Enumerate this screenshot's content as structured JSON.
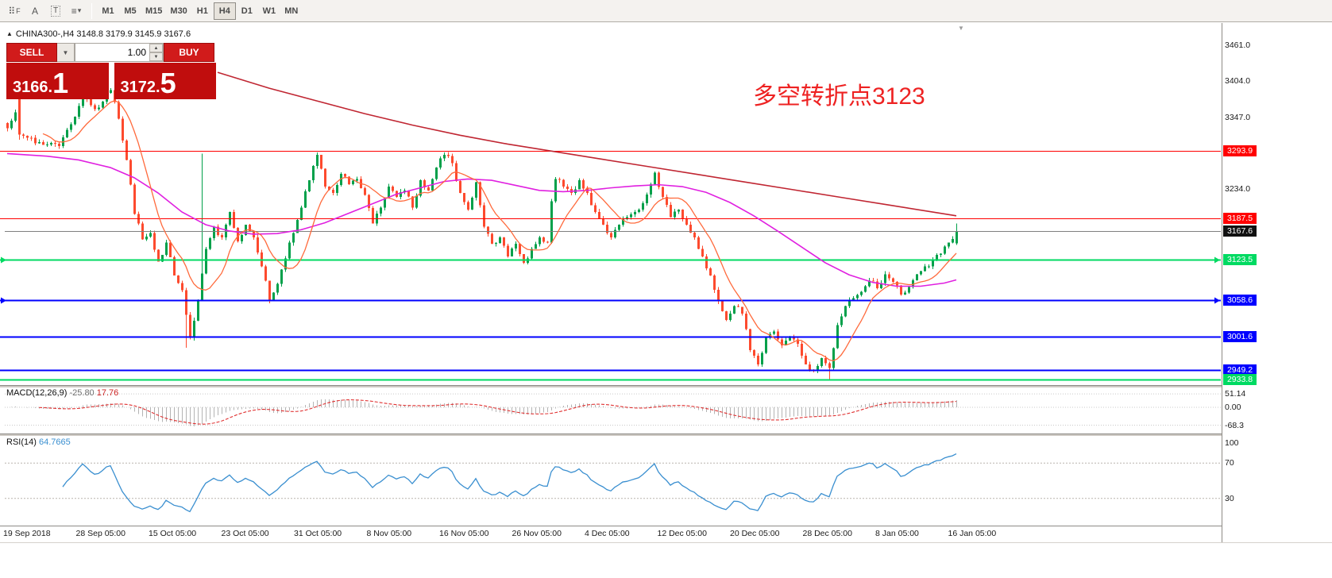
{
  "colors": {
    "up": "#00a04a",
    "down": "#fd4a2e",
    "ma_slow": "#c02632",
    "ma_mid": "#e020e0",
    "ma_fast": "#ff6a3c",
    "line_red": "#ff0000",
    "line_green": "#00da62",
    "line_blue": "#0000ff",
    "last_badge_bg": "#111111",
    "macd_hist": "#b4b4b4",
    "macd_signal": "#e03030",
    "rsi_line": "#3a8fd0",
    "annotation": "#ee2222"
  },
  "toolbar": {
    "icons": [
      {
        "name": "hotkeys-icon",
        "glyph": "⠿",
        "suffix": "F"
      },
      {
        "name": "text-annotation-icon",
        "glyph": "A",
        "suffix": ""
      },
      {
        "name": "text-box-icon",
        "glyph": "T",
        "suffix": "",
        "boxed": true
      },
      {
        "name": "line-style-icon",
        "glyph": "≡",
        "suffix": "▾"
      }
    ],
    "timeframes": [
      {
        "label": "M1",
        "active": false
      },
      {
        "label": "M5",
        "active": false
      },
      {
        "label": "M15",
        "active": false
      },
      {
        "label": "M30",
        "active": false
      },
      {
        "label": "H1",
        "active": false
      },
      {
        "label": "H4",
        "active": true
      },
      {
        "label": "D1",
        "active": false
      },
      {
        "label": "W1",
        "active": false
      },
      {
        "label": "MN",
        "active": false
      }
    ]
  },
  "header": {
    "collapse_arrow": "▲",
    "title": "CHINA300-,H4  3148.8 3179.9 3145.9 3167.6",
    "shift_marker": "▼"
  },
  "trade_panel": {
    "sell_label": "SELL",
    "buy_label": "BUY",
    "volume": "1.00",
    "sell_price": {
      "main": "3166.",
      "big": "1"
    },
    "buy_price": {
      "main": "3172.",
      "big": "5"
    }
  },
  "annotation": {
    "text": "多空转折点3123"
  },
  "chart_data": {
    "type": "candlestick",
    "symbol": "CHINA300-",
    "timeframe": "H4",
    "current_ohlc": {
      "open": 3148.8,
      "high": 3179.9,
      "low": 3145.9,
      "close": 3167.6
    },
    "y_axis": {
      "min": 2924,
      "max": 3487,
      "ticks": [
        "3461.0",
        "3404.0",
        "3347.0",
        "3234.0"
      ]
    },
    "x_labels": [
      "19 Sep 2018",
      "28 Sep 05:00",
      "15 Oct 05:00",
      "23 Oct 05:00",
      "31 Oct 05:00",
      "8 Nov 05:00",
      "16 Nov 05:00",
      "26 Nov 05:00",
      "4 Dec 05:00",
      "12 Dec 05:00",
      "20 Dec 05:00",
      "28 Dec 05:00",
      "8 Jan 05:00",
      "16 Jan 05:00"
    ],
    "horizontal_lines": [
      {
        "price": 3293.9,
        "label": "3293.9",
        "color": "red"
      },
      {
        "price": 3187.5,
        "label": "3187.5",
        "color": "red"
      },
      {
        "price": 3123.5,
        "label": "3123.5",
        "color": "green",
        "edge_markers": true
      },
      {
        "price": 3058.6,
        "label": "3058.6",
        "color": "blue",
        "edge_markers": true
      },
      {
        "price": 3001.6,
        "label": "3001.6",
        "color": "blue"
      },
      {
        "price": 2949.2,
        "label": "2949.2",
        "color": "blue"
      },
      {
        "price": 2933.8,
        "label": "2933.8",
        "color": "green"
      }
    ],
    "last_price": {
      "value": 3167.6,
      "label": "3167.6"
    },
    "candles": {
      "count": 240,
      "close_waypoints": [
        [
          0,
          3330
        ],
        [
          2,
          3355
        ],
        [
          4,
          3318
        ],
        [
          8,
          3308
        ],
        [
          13,
          3302
        ],
        [
          17,
          3348
        ],
        [
          19,
          3383
        ],
        [
          22,
          3360
        ],
        [
          24,
          3372
        ],
        [
          26,
          3390
        ],
        [
          28,
          3345
        ],
        [
          30,
          3280
        ],
        [
          32,
          3195
        ],
        [
          34,
          3155
        ],
        [
          36,
          3165
        ],
        [
          38,
          3120
        ],
        [
          40,
          3150
        ],
        [
          42,
          3098
        ],
        [
          44,
          3075
        ],
        [
          46,
          3000
        ],
        [
          48,
          3060
        ],
        [
          50,
          3140
        ],
        [
          52,
          3175
        ],
        [
          54,
          3158
        ],
        [
          56,
          3198
        ],
        [
          58,
          3152
        ],
        [
          60,
          3178
        ],
        [
          62,
          3158
        ],
        [
          64,
          3112
        ],
        [
          66,
          3058
        ],
        [
          68,
          3085
        ],
        [
          70,
          3125
        ],
        [
          72,
          3165
        ],
        [
          74,
          3205
        ],
        [
          76,
          3248
        ],
        [
          78,
          3288
        ],
        [
          80,
          3238
        ],
        [
          82,
          3228
        ],
        [
          84,
          3258
        ],
        [
          86,
          3242
        ],
        [
          88,
          3250
        ],
        [
          90,
          3225
        ],
        [
          92,
          3180
        ],
        [
          94,
          3205
        ],
        [
          96,
          3238
        ],
        [
          98,
          3222
        ],
        [
          100,
          3232
        ],
        [
          102,
          3205
        ],
        [
          104,
          3248
        ],
        [
          106,
          3232
        ],
        [
          108,
          3268
        ],
        [
          110,
          3288
        ],
        [
          112,
          3275
        ],
        [
          114,
          3228
        ],
        [
          116,
          3202
        ],
        [
          118,
          3245
        ],
        [
          120,
          3175
        ],
        [
          122,
          3148
        ],
        [
          124,
          3158
        ],
        [
          126,
          3128
        ],
        [
          128,
          3148
        ],
        [
          130,
          3118
        ],
        [
          132,
          3140
        ],
        [
          134,
          3158
        ],
        [
          136,
          3150
        ],
        [
          137,
          3215
        ],
        [
          138,
          3250
        ],
        [
          140,
          3238
        ],
        [
          142,
          3228
        ],
        [
          144,
          3248
        ],
        [
          146,
          3228
        ],
        [
          148,
          3198
        ],
        [
          150,
          3178
        ],
        [
          152,
          3158
        ],
        [
          154,
          3178
        ],
        [
          156,
          3190
        ],
        [
          158,
          3198
        ],
        [
          160,
          3212
        ],
        [
          162,
          3242
        ],
        [
          163,
          3260
        ],
        [
          165,
          3222
        ],
        [
          167,
          3190
        ],
        [
          169,
          3202
        ],
        [
          171,
          3178
        ],
        [
          173,
          3158
        ],
        [
          175,
          3128
        ],
        [
          177,
          3098
        ],
        [
          179,
          3058
        ],
        [
          181,
          3028
        ],
        [
          183,
          3050
        ],
        [
          185,
          3038
        ],
        [
          187,
          2980
        ],
        [
          189,
          2958
        ],
        [
          191,
          3000
        ],
        [
          193,
          3010
        ],
        [
          195,
          2988
        ],
        [
          197,
          3000
        ],
        [
          199,
          2990
        ],
        [
          201,
          2958
        ],
        [
          203,
          2948
        ],
        [
          205,
          2968
        ],
        [
          207,
          2952
        ],
        [
          209,
          3020
        ],
        [
          211,
          3050
        ],
        [
          213,
          3062
        ],
        [
          215,
          3072
        ],
        [
          217,
          3090
        ],
        [
          219,
          3078
        ],
        [
          221,
          3100
        ],
        [
          223,
          3088
        ],
        [
          225,
          3068
        ],
        [
          227,
          3080
        ],
        [
          229,
          3100
        ],
        [
          231,
          3112
        ],
        [
          233,
          3122
        ],
        [
          235,
          3132
        ],
        [
          237,
          3150
        ],
        [
          239,
          3167.6
        ]
      ],
      "specials": [
        {
          "i": 3,
          "open": 3390,
          "high": 3394,
          "low": 3312,
          "close": 3320
        },
        {
          "i": 45,
          "low": 2984
        },
        {
          "i": 49,
          "high": 3290
        },
        {
          "i": 207,
          "low": 2933.8
        },
        {
          "i": 239,
          "open": 3148.8,
          "high": 3179.9,
          "low": 3145.9,
          "close": 3167.6
        }
      ]
    },
    "overlays": {
      "ma_slow_points": [
        [
          53,
          3418
        ],
        [
          66,
          3393
        ],
        [
          78,
          3373
        ],
        [
          90,
          3353
        ],
        [
          102,
          3335
        ],
        [
          114,
          3319
        ],
        [
          126,
          3305
        ],
        [
          138,
          3293
        ],
        [
          150,
          3281
        ],
        [
          162,
          3269
        ],
        [
          174,
          3257
        ],
        [
          186,
          3245
        ],
        [
          198,
          3233
        ],
        [
          210,
          3221
        ],
        [
          222,
          3209
        ],
        [
          239,
          3192
        ]
      ],
      "ma_mid_points": [
        [
          0,
          3290
        ],
        [
          10,
          3286
        ],
        [
          18,
          3280
        ],
        [
          26,
          3268
        ],
        [
          32,
          3252
        ],
        [
          38,
          3228
        ],
        [
          44,
          3198
        ],
        [
          50,
          3178
        ],
        [
          56,
          3168
        ],
        [
          62,
          3163
        ],
        [
          68,
          3164
        ],
        [
          74,
          3170
        ],
        [
          80,
          3181
        ],
        [
          86,
          3196
        ],
        [
          92,
          3211
        ],
        [
          98,
          3226
        ],
        [
          104,
          3236
        ],
        [
          110,
          3246
        ],
        [
          116,
          3250
        ],
        [
          122,
          3248
        ],
        [
          128,
          3240
        ],
        [
          134,
          3232
        ],
        [
          140,
          3230
        ],
        [
          146,
          3232
        ],
        [
          152,
          3236
        ],
        [
          158,
          3239
        ],
        [
          164,
          3241
        ],
        [
          170,
          3238
        ],
        [
          176,
          3229
        ],
        [
          182,
          3213
        ],
        [
          188,
          3192
        ],
        [
          194,
          3168
        ],
        [
          200,
          3143
        ],
        [
          206,
          3118
        ],
        [
          212,
          3099
        ],
        [
          218,
          3087
        ],
        [
          224,
          3081
        ],
        [
          230,
          3081
        ],
        [
          236,
          3086
        ],
        [
          239,
          3091
        ]
      ],
      "ma_fast_period": 10
    },
    "macd": {
      "label": "MACD(12,26,9)",
      "values": [
        "-25.80",
        "17.76"
      ],
      "axis_ticks": [
        "51.14",
        "0.00",
        "-68.3"
      ],
      "params": [
        12,
        26,
        9
      ]
    },
    "rsi": {
      "label": "RSI(14)",
      "value": "64.7665",
      "axis_ticks": [
        "100",
        "70",
        "30"
      ],
      "levels": [
        70,
        30
      ],
      "period": 14
    }
  }
}
